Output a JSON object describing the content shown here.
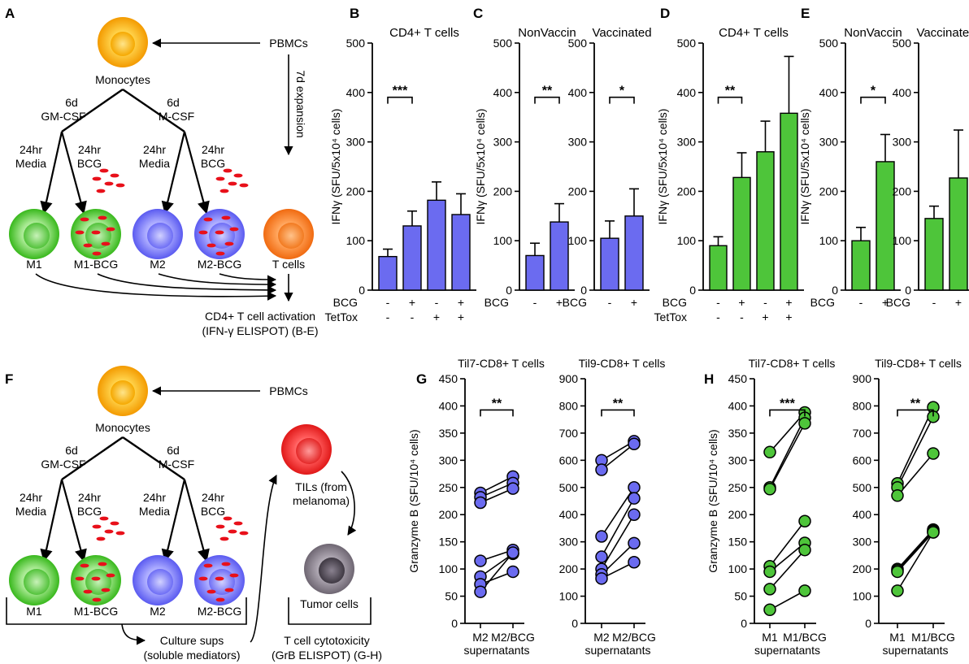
{
  "colors": {
    "blue": "#6b6bf0",
    "green": "#4ec53a",
    "axis": "#000000",
    "bcg": "#e8101a"
  },
  "schematic": {
    "panel_a": "A",
    "panel_f": "F",
    "pbmcs": "PBMCs",
    "monocytes": "Monocytes",
    "gm_days": "6d",
    "gm_label": "GM-CSF",
    "m_days": "6d",
    "m_label": "M-CSF",
    "expansion": "7d expansion",
    "arm_24hr": "24hr",
    "arm_media": "Media",
    "arm_bcg": "BCG",
    "cell_m1": "M1",
    "cell_m1bcg": "M1-BCG",
    "cell_m2": "M2",
    "cell_m2bcg": "M2-BCG",
    "cell_t": "T cells",
    "activation_line1": "CD4+ T cell activation",
    "activation_line2": "(IFN-γ ELISPOT) (B-E)",
    "tils_line1": "TILs (from",
    "tils_line2": "melanoma)",
    "tumor": "Tumor cells",
    "sups_line1": "Culture sups",
    "sups_line2": "(soluble mediators)",
    "cyto_line1": "T cell cytotoxicity",
    "cyto_line2": "(GrB ELISPOT) (G-H)"
  },
  "chart_data": [
    {
      "panel": "B",
      "type": "bar",
      "title": "CD4+ T cells",
      "color": "blue",
      "ylabel": "IFNγ (SFU/5x10⁴ cells)",
      "ylim": [
        0,
        500
      ],
      "yticks": [
        0,
        100,
        200,
        300,
        400,
        500
      ],
      "values": [
        68,
        130,
        182,
        153
      ],
      "errors": [
        15,
        30,
        37,
        42
      ],
      "rows": [
        {
          "label": "BCG",
          "signs": [
            "-",
            "+",
            "-",
            "+"
          ]
        },
        {
          "label": "TetTox",
          "signs": [
            "-",
            "-",
            "+",
            "+"
          ]
        }
      ],
      "sig": {
        "from": 0,
        "to": 1,
        "y": 415,
        "label": "***"
      }
    },
    {
      "panel": "C",
      "type": "bar",
      "title": "NonVaccin",
      "color": "blue",
      "ylabel": "IFNγ (SFU/5x10⁴ cells)",
      "ylim": [
        0,
        500
      ],
      "yticks": [
        0,
        100,
        200,
        300,
        400,
        500
      ],
      "values": [
        70,
        138
      ],
      "errors": [
        25,
        37
      ],
      "rows": [
        {
          "label": "BCG",
          "signs": [
            "-",
            "+"
          ]
        }
      ],
      "sig": {
        "from": 0,
        "to": 1,
        "y": 415,
        "label": "**"
      }
    },
    {
      "panel": "",
      "type": "bar",
      "title": "Vaccinated",
      "color": "blue",
      "ylabel": "",
      "ylim": [
        0,
        500
      ],
      "yticks": [
        0,
        100,
        200,
        300,
        400,
        500
      ],
      "values": [
        105,
        150
      ],
      "errors": [
        35,
        55
      ],
      "rows": [
        {
          "label": "BCG",
          "signs": [
            "-",
            "+"
          ]
        }
      ],
      "sig": {
        "from": 0,
        "to": 1,
        "y": 415,
        "label": "*"
      }
    },
    {
      "panel": "D",
      "type": "bar",
      "title": "CD4+ T cells",
      "color": "green",
      "ylabel": "IFNγ (SFU/5x10⁴ cells)",
      "ylim": [
        0,
        500
      ],
      "yticks": [
        0,
        100,
        200,
        300,
        400,
        500
      ],
      "values": [
        90,
        228,
        280,
        358
      ],
      "errors": [
        18,
        50,
        62,
        115
      ],
      "rows": [
        {
          "label": "BCG",
          "signs": [
            "-",
            "+",
            "-",
            "+"
          ]
        },
        {
          "label": "TetTox",
          "signs": [
            "-",
            "-",
            "+",
            "+"
          ]
        }
      ],
      "sig": {
        "from": 0,
        "to": 1,
        "y": 415,
        "label": "**"
      }
    },
    {
      "panel": "E",
      "type": "bar",
      "title": "NonVaccin",
      "color": "green",
      "ylabel": "IFNγ (SFU/5x10⁴ cells)",
      "ylim": [
        0,
        500
      ],
      "yticks": [
        0,
        100,
        200,
        300,
        400,
        500
      ],
      "values": [
        100,
        260
      ],
      "errors": [
        27,
        55
      ],
      "rows": [
        {
          "label": "BCG",
          "signs": [
            "-",
            "+"
          ]
        }
      ],
      "sig": {
        "from": 0,
        "to": 1,
        "y": 415,
        "label": "*"
      }
    },
    {
      "panel": "",
      "type": "bar",
      "title": "Vaccinated",
      "color": "green",
      "ylabel": "",
      "ylim": [
        0,
        500
      ],
      "yticks": [
        0,
        100,
        200,
        300,
        400,
        500
      ],
      "values": [
        145,
        227
      ],
      "errors": [
        25,
        97
      ],
      "rows": [
        {
          "label": "BCG",
          "signs": [
            "-",
            "+"
          ]
        }
      ],
      "sig": {
        "from": 0,
        "to": 1,
        "y": 415,
        "label": ""
      }
    },
    {
      "panel": "G",
      "type": "scatter",
      "title": "Til7-CD8+ T cells",
      "color": "blue",
      "ylabel": "Granzyme B (SFU/10⁴ cells)",
      "ylim": [
        0,
        450
      ],
      "yticks": [
        0,
        50,
        100,
        150,
        200,
        250,
        300,
        350,
        400,
        450
      ],
      "categories": [
        "M2",
        "M2/BCG"
      ],
      "xgroup": "supernatants",
      "pairs": [
        [
          240,
          270
        ],
        [
          232,
          258
        ],
        [
          222,
          248
        ],
        [
          115,
          135
        ],
        [
          86,
          128
        ],
        [
          72,
          95
        ],
        [
          58,
          130
        ]
      ],
      "sig": {
        "y": 415,
        "label": "**"
      }
    },
    {
      "panel": "",
      "type": "scatter",
      "title": "Til9-CD8+ T cells",
      "color": "blue",
      "ylabel": "",
      "ylim": [
        0,
        900
      ],
      "yticks": [
        0,
        100,
        200,
        300,
        400,
        500,
        600,
        700,
        800,
        900
      ],
      "categories": [
        "M2",
        "M2/BCG"
      ],
      "xgroup": "supernatants",
      "pairs": [
        [
          600,
          670
        ],
        [
          565,
          660
        ],
        [
          320,
          500
        ],
        [
          245,
          460
        ],
        [
          200,
          400
        ],
        [
          180,
          295
        ],
        [
          165,
          225
        ]
      ],
      "sig": {
        "y": 830,
        "label": "**"
      }
    },
    {
      "panel": "H",
      "type": "scatter",
      "title": "Til7-CD8+ T cells",
      "color": "green",
      "ylabel": "Granzyme B (SFU/10⁴ cells)",
      "ylim": [
        0,
        450
      ],
      "yticks": [
        0,
        50,
        100,
        150,
        200,
        250,
        300,
        350,
        400,
        450
      ],
      "categories": [
        "M1",
        "M1/BCG"
      ],
      "xgroup": "supernatants",
      "pairs": [
        [
          315,
          388
        ],
        [
          250,
          378
        ],
        [
          247,
          368
        ],
        [
          105,
          188
        ],
        [
          95,
          148
        ],
        [
          63,
          135
        ],
        [
          25,
          60
        ]
      ],
      "sig": {
        "y": 415,
        "label": "***"
      }
    },
    {
      "panel": "",
      "type": "scatter",
      "title": "Til9-CD8+ T cells",
      "color": "green",
      "ylabel": "",
      "ylim": [
        0,
        900
      ],
      "yticks": [
        0,
        100,
        200,
        300,
        400,
        500,
        600,
        700,
        800,
        900
      ],
      "categories": [
        "M1",
        "M1/BCG"
      ],
      "xgroup": "supernatants",
      "pairs": [
        [
          515,
          795
        ],
        [
          500,
          760
        ],
        [
          470,
          625
        ],
        [
          200,
          345
        ],
        [
          195,
          340
        ],
        [
          190,
          335
        ],
        [
          120,
          335
        ]
      ],
      "sig": {
        "y": 830,
        "label": "**"
      }
    }
  ]
}
